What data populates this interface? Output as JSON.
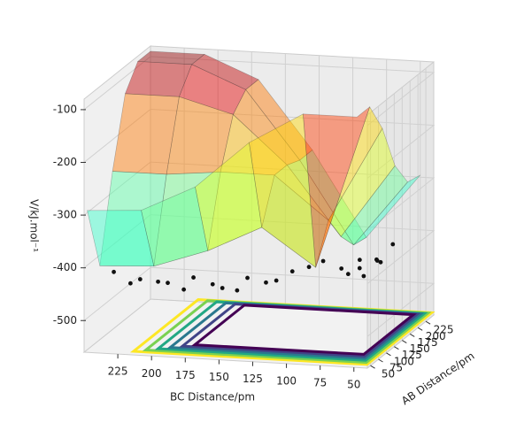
{
  "chart_data": {
    "type": "surface3d",
    "xlabel": "AB Distance/pm",
    "ylabel": "BC Distance/pm",
    "zlabel": "V/kJ.mol⁻¹",
    "xlim": [
      40,
      250
    ],
    "ylim": [
      40,
      250
    ],
    "zlim": [
      -560,
      -80
    ],
    "xticks": [
      50,
      75,
      100,
      125,
      150,
      175,
      200,
      225
    ],
    "yticks": [
      50,
      75,
      100,
      125,
      150,
      175,
      200,
      225
    ],
    "zticks": [
      -500,
      -400,
      -300,
      -200,
      -100
    ],
    "grid": true,
    "colormap": "jet",
    "surface": {
      "x": [
        50,
        90,
        130,
        170,
        210,
        250
      ],
      "y": [
        50,
        90,
        130,
        170,
        210,
        250
      ],
      "z": [
        [
          -90,
          -90,
          -150,
          -240,
          -290,
          -296
        ],
        [
          -90,
          -400,
          -330,
          -380,
          -415,
          -420
        ],
        [
          -150,
          -330,
          -250,
          -250,
          -260,
          -260
        ],
        [
          -240,
          -380,
          -250,
          -160,
          -132,
          -132
        ],
        [
          -290,
          -415,
          -260,
          -132,
          -90,
          -90
        ],
        [
          -296,
          -420,
          -260,
          -132,
          -90,
          -90
        ]
      ]
    },
    "trajectory": {
      "color": "#111111",
      "x": [
        70,
        80,
        68,
        82,
        70,
        78,
        66,
        84,
        72,
        76,
        66,
        82,
        72,
        80,
        90,
        105,
        120,
        135,
        150,
        165,
        180,
        195,
        210,
        225,
        240
      ],
      "y": [
        235,
        225,
        215,
        205,
        195,
        185,
        175,
        165,
        155,
        145,
        135,
        125,
        115,
        105,
        95,
        88,
        78,
        68,
        80,
        72,
        66,
        82,
        70,
        76,
        68
      ],
      "z": [
        -420,
        -445,
        -430,
        -440,
        -435,
        -450,
        -420,
        -440,
        -440,
        -445,
        -415,
        -430,
        -420,
        -405,
        -400,
        -395,
        -415,
        -420,
        -440,
        -450,
        -425,
        -435,
        -445,
        -450,
        -425
      ]
    }
  }
}
